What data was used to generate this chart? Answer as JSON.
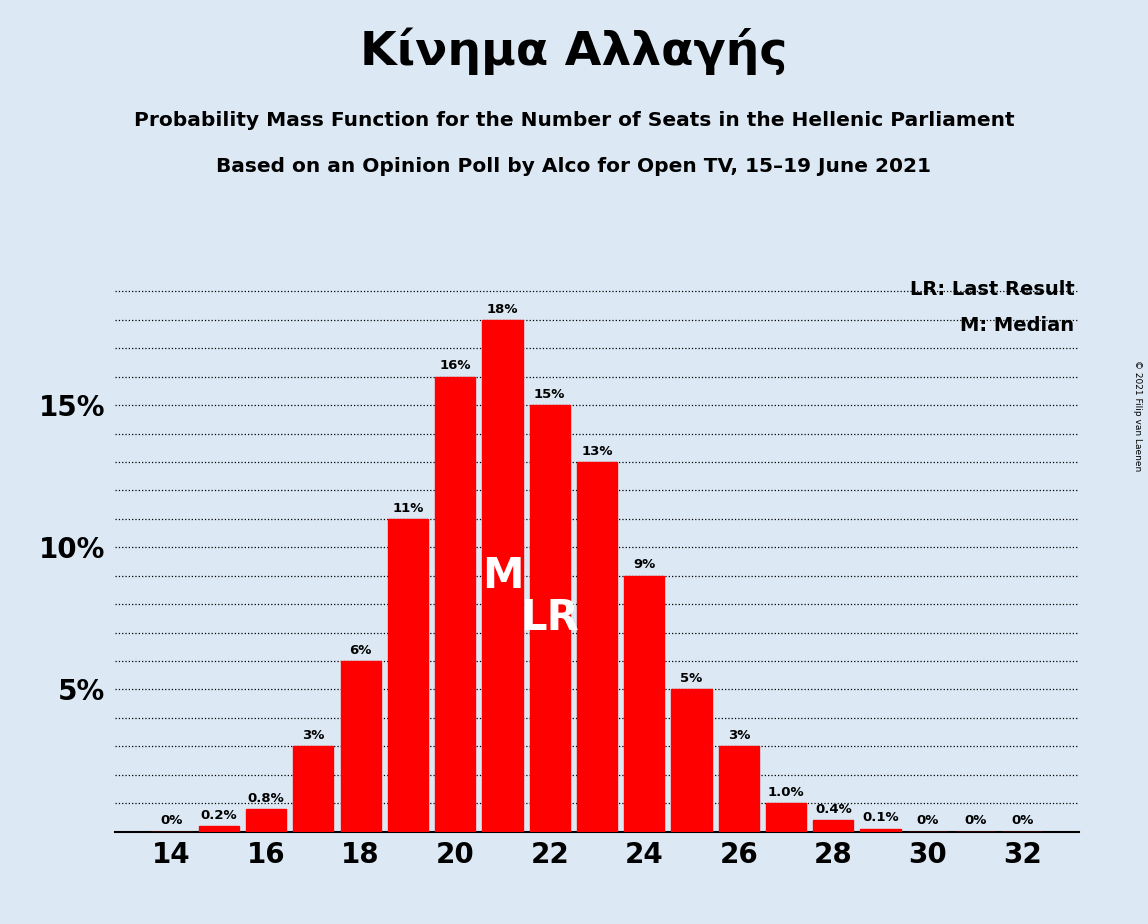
{
  "title": "Κίνημα Αλλαγής",
  "subtitle1": "Probability Mass Function for the Number of Seats in the Hellenic Parliament",
  "subtitle2": "Based on an Opinion Poll by Alco for Open TV, 15–19 June 2021",
  "copyright": "© 2021 Filip van Laenen",
  "legend_lr": "LR: Last Result",
  "legend_m": "M: Median",
  "seats": [
    14,
    15,
    16,
    17,
    18,
    19,
    20,
    21,
    22,
    23,
    24,
    25,
    26,
    27,
    28,
    29,
    30,
    31,
    32
  ],
  "probabilities": [
    0.0,
    0.2,
    0.8,
    3.0,
    6.0,
    11.0,
    16.0,
    18.0,
    15.0,
    13.0,
    9.0,
    5.0,
    3.0,
    1.0,
    0.4,
    0.1,
    0.0,
    0.0,
    0.0
  ],
  "labels": [
    "0%",
    "0.2%",
    "0.8%",
    "3%",
    "6%",
    "11%",
    "16%",
    "18%",
    "15%",
    "13%",
    "9%",
    "5%",
    "3%",
    "1.0%",
    "0.4%",
    "0.1%",
    "0%",
    "0%",
    "0%"
  ],
  "bar_color": "#FF0000",
  "background_color": "#dce9f5",
  "text_color": "#000000",
  "median_seat": 21,
  "lr_seat": 22,
  "yticks": [
    5,
    10,
    15
  ],
  "ytick_labels": [
    "5%",
    "10%",
    "15%"
  ],
  "ylim": [
    0,
    19.5
  ],
  "xlim_min": 12.8,
  "xlim_max": 33.2
}
